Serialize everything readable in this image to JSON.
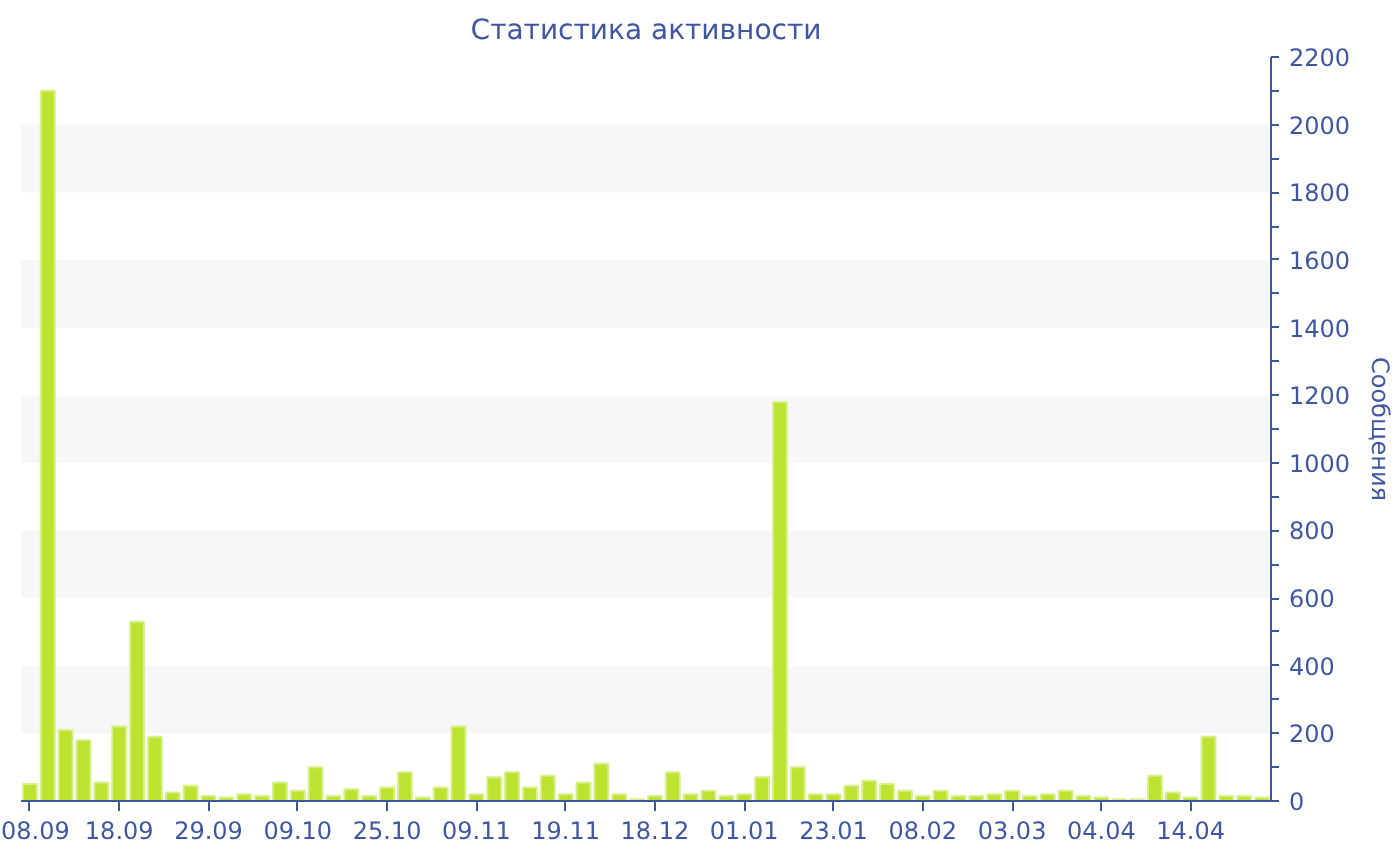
{
  "chart_data": {
    "type": "bar",
    "title": "Статистика активности",
    "ylabel": "Сообщения",
    "categories": [
      "08.09",
      null,
      null,
      null,
      null,
      "18.09",
      null,
      null,
      null,
      null,
      "29.09",
      null,
      null,
      null,
      null,
      "09.10",
      null,
      null,
      null,
      null,
      "25.10",
      null,
      null,
      null,
      null,
      "09.11",
      null,
      null,
      null,
      null,
      "19.11",
      null,
      null,
      null,
      null,
      "18.12",
      null,
      null,
      null,
      null,
      "01.01",
      null,
      null,
      null,
      null,
      "23.01",
      null,
      null,
      null,
      null,
      "08.02",
      null,
      null,
      null,
      null,
      "03.03",
      null,
      null,
      null,
      null,
      "04.04",
      null,
      null,
      null,
      null,
      "14.04",
      null,
      null,
      null,
      null
    ],
    "values": [
      50,
      2100,
      210,
      180,
      55,
      220,
      530,
      190,
      25,
      45,
      15,
      10,
      20,
      15,
      55,
      30,
      100,
      15,
      35,
      15,
      40,
      85,
      10,
      40,
      220,
      20,
      70,
      85,
      40,
      75,
      20,
      55,
      110,
      20,
      5,
      15,
      85,
      20,
      30,
      15,
      20,
      70,
      1180,
      100,
      20,
      20,
      45,
      60,
      50,
      30,
      15,
      30,
      15,
      15,
      20,
      30,
      15,
      20,
      30,
      15,
      10,
      5,
      5,
      75,
      25,
      10,
      190,
      15,
      15,
      10
    ],
    "color": "#bde22f",
    "ylim": [
      0,
      2200
    ],
    "yticks": [
      0,
      {
        "value": 100,
        "label": null
      },
      200,
      {
        "value": 300,
        "label": null
      },
      400,
      {
        "value": 500,
        "label": null
      },
      600,
      {
        "value": 700,
        "label": null
      },
      800,
      {
        "value": 900,
        "label": null
      },
      1000,
      {
        "value": 1100,
        "label": null
      },
      1200,
      {
        "value": 1300,
        "label": null
      },
      1400,
      {
        "value": 1500,
        "label": null
      },
      1600,
      {
        "value": 1700,
        "label": null
      },
      1800,
      {
        "value": 1900,
        "label": null
      },
      2000,
      {
        "value": 2100,
        "label": null
      },
      2200
    ],
    "bands": [
      {
        "axis": "y",
        "from": 200,
        "to": 400,
        "color": "#f7f7f7"
      },
      {
        "axis": "y",
        "from": 600,
        "to": 800,
        "color": "#f7f7f7"
      },
      {
        "axis": "y",
        "from": 1000,
        "to": 1200,
        "color": "#f7f7f7"
      },
      {
        "axis": "y",
        "from": 1400,
        "to": 1600,
        "color": "#f7f7f7"
      },
      {
        "axis": "y",
        "from": 1800,
        "to": 2000,
        "color": "#f7f7f7"
      }
    ]
  }
}
